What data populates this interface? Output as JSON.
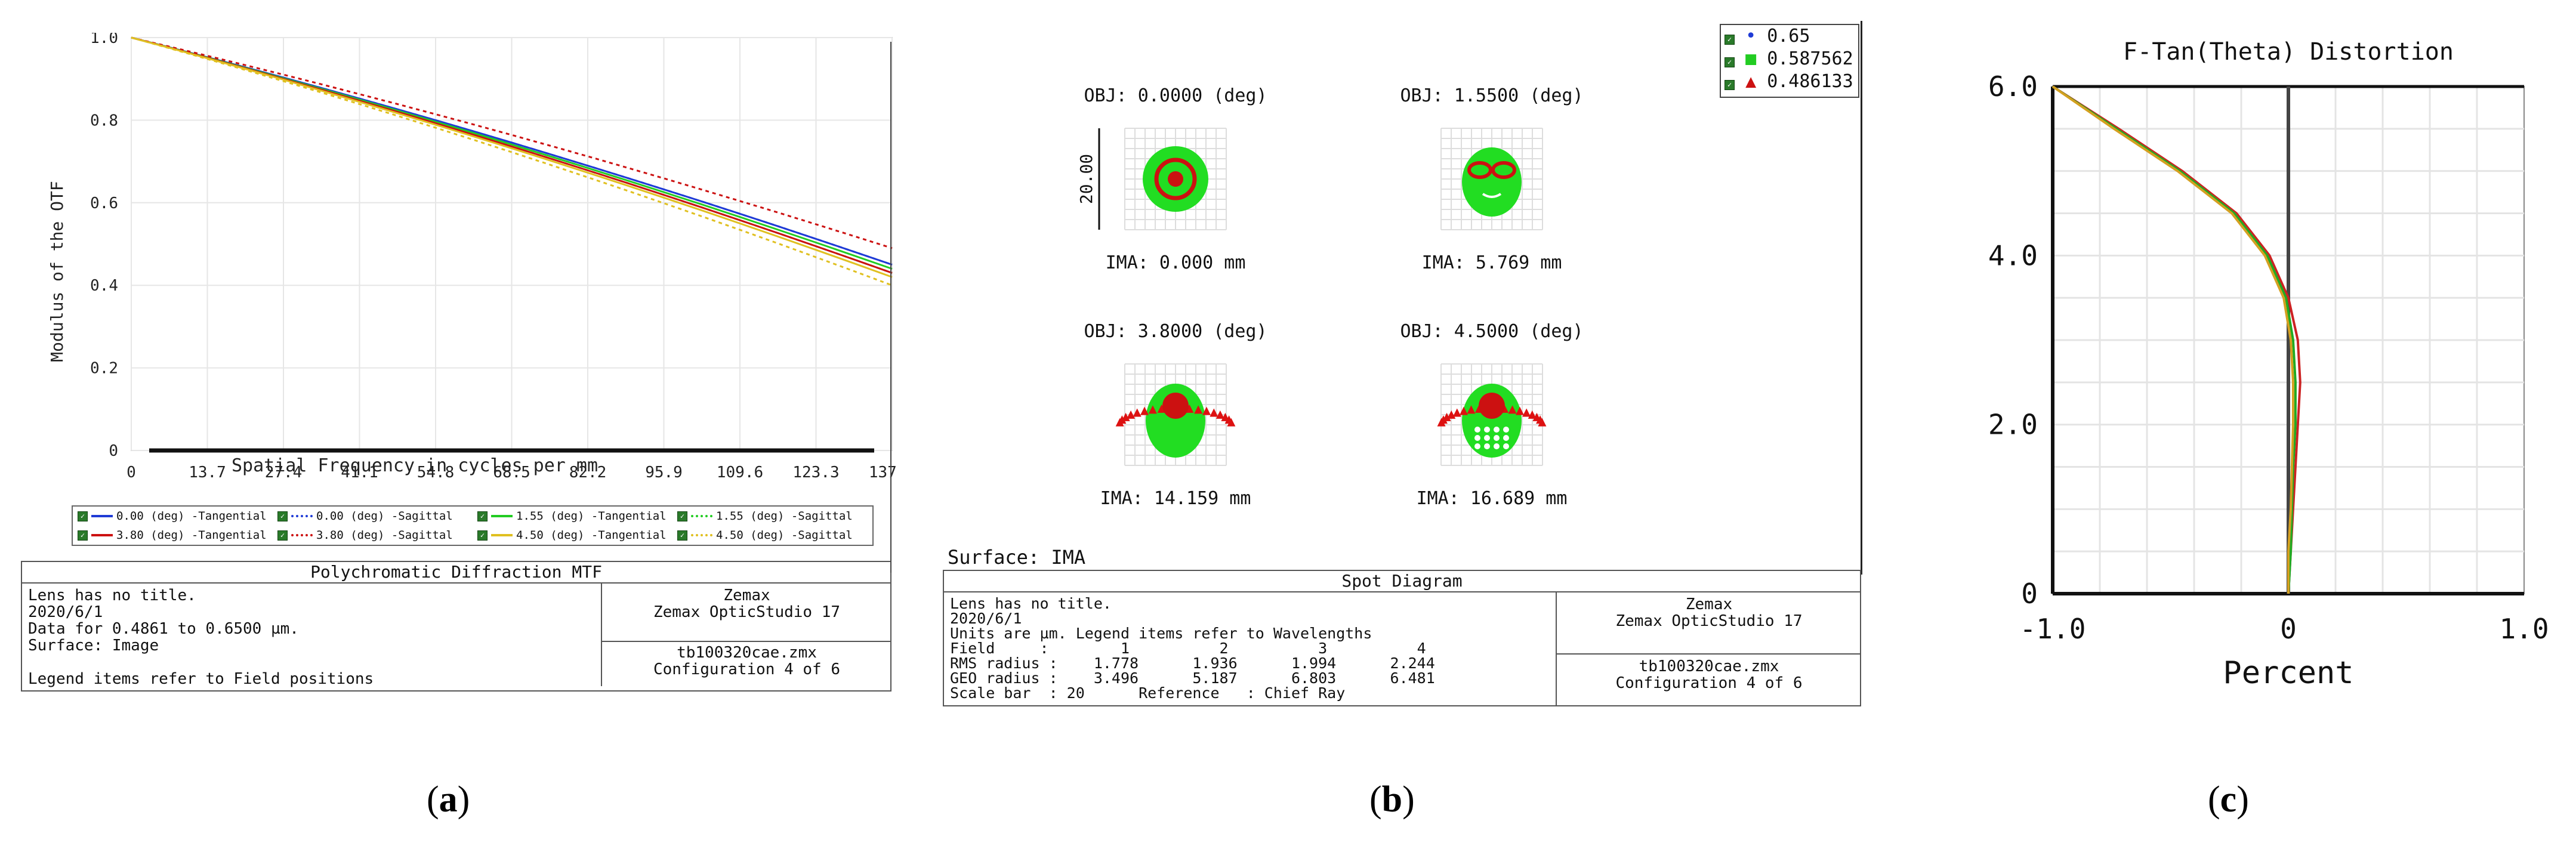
{
  "captions": {
    "a": "a",
    "b": "b",
    "c": "c"
  },
  "mtf": {
    "chart_data": {
      "type": "line",
      "title": "Polychromatic Diffraction MTF",
      "xlabel": "Spatial Frequency in cycles per mm",
      "ylabel": "Modulus of the OTF",
      "xlim": [
        0,
        137.0
      ],
      "ylim": [
        0,
        1.0
      ],
      "xticks": [
        "0",
        "13.7",
        "27.4",
        "41.1",
        "54.8",
        "68.5",
        "82.2",
        "95.9",
        "109.6",
        "123.3",
        "137.0"
      ],
      "yticks": [
        "0",
        "0.2",
        "0.4",
        "0.6",
        "0.8",
        "1.0"
      ],
      "grid": true,
      "legend_position": "bottom",
      "series": [
        {
          "name": "0.00 (deg) -Tangential",
          "color": "#1f3bd6",
          "dash": false,
          "end": 0.45
        },
        {
          "name": "0.00 (deg) -Sagittal",
          "color": "#1f3bd6",
          "dash": true,
          "end": 0.45
        },
        {
          "name": "1.55 (deg) -Tangential",
          "color": "#22cc22",
          "dash": false,
          "end": 0.44
        },
        {
          "name": "1.55 (deg) -Sagittal",
          "color": "#22cc22",
          "dash": true,
          "end": 0.43
        },
        {
          "name": "3.80 (deg) -Tangential",
          "color": "#cc1111",
          "dash": false,
          "end": 0.43
        },
        {
          "name": "3.80 (deg) -Sagittal",
          "color": "#cc1111",
          "dash": true,
          "end": 0.49
        },
        {
          "name": "4.50 (deg) -Tangential",
          "color": "#e0c020",
          "dash": false,
          "end": 0.42
        },
        {
          "name": "4.50 (deg) -Sagittal",
          "color": "#e0c020",
          "dash": true,
          "end": 0.4
        }
      ]
    },
    "info": {
      "header": "Polychromatic Diffraction MTF",
      "left": "Lens has no title.\n2020/6/1\nData for 0.4861 to 0.6500 µm.\nSurface: Image\n\nLegend items refer to Field positions",
      "right_top": "Zemax\nZemax OpticStudio 17",
      "right_bottom": "tb100320cae.zmx\nConfiguration 4 of 6"
    }
  },
  "spot": {
    "legend": [
      {
        "label": "0.65",
        "color": "#1f3bd6"
      },
      {
        "label": "0.587562",
        "color": "#22cc22"
      },
      {
        "label": "0.486133",
        "color": "#cc1111"
      }
    ],
    "fields": [
      {
        "obj": "OBJ: 0.0000 (deg)",
        "ima": "IMA: 0.000 mm"
      },
      {
        "obj": "OBJ: 1.5500 (deg)",
        "ima": "IMA: 5.769 mm"
      },
      {
        "obj": "OBJ: 3.8000 (deg)",
        "ima": "IMA: 14.159 mm"
      },
      {
        "obj": "OBJ: 4.5000 (deg)",
        "ima": "IMA: 16.689 mm"
      }
    ],
    "scale_label": "20.00",
    "surface": "Surface: IMA",
    "info": {
      "header": "Spot Diagram",
      "left": "Lens has no title.\n2020/6/1\nUnits are µm. Legend items refer to Wavelengths\nField     :        1          2          3          4\nRMS radius :    1.778      1.936      1.994      2.244\nGEO radius :    3.496      5.187      6.803      6.481\nScale bar  : 20      Reference   : Chief Ray",
      "right_top": "Zemax\nZemax OpticStudio 17",
      "right_bottom": "tb100320cae.zmx\nConfiguration 4 of 6"
    }
  },
  "distortion": {
    "chart_data": {
      "type": "line",
      "title": "F-Tan(Theta) Distortion",
      "xlabel": "Percent",
      "ylabel": "",
      "xlim": [
        -1.0,
        1.0
      ],
      "ylim": [
        0,
        6.0
      ],
      "xticks": [
        "-1.0",
        "0",
        "1.0"
      ],
      "yticks": [
        "0",
        "2.0",
        "4.0",
        "6.0"
      ],
      "grid": true,
      "series": [
        {
          "name": "red",
          "color": "#cc2222",
          "y": [
            0,
            0.5,
            1.0,
            1.5,
            2.0,
            2.5,
            3.0,
            3.5,
            4.0,
            4.5,
            5.0,
            5.5,
            6.0
          ],
          "x": [
            0.0,
            0.01,
            0.02,
            0.03,
            0.04,
            0.05,
            0.04,
            0.0,
            -0.08,
            -0.22,
            -0.45,
            -0.72,
            -1.0
          ]
        },
        {
          "name": "green",
          "color": "#22aa22",
          "y": [
            0,
            0.5,
            1.0,
            1.5,
            2.0,
            2.5,
            3.0,
            3.5,
            4.0,
            4.5,
            5.0,
            5.5,
            6.0
          ],
          "x": [
            0.0,
            0.01,
            0.015,
            0.02,
            0.03,
            0.03,
            0.02,
            -0.01,
            -0.09,
            -0.23,
            -0.46,
            -0.73,
            -1.0
          ]
        },
        {
          "name": "gold",
          "color": "#d4a020",
          "y": [
            0,
            0.5,
            1.0,
            1.5,
            2.0,
            2.5,
            3.0,
            3.5,
            4.0,
            4.5,
            5.0,
            5.5,
            6.0
          ],
          "x": [
            0.0,
            0.0,
            0.01,
            0.015,
            0.02,
            0.02,
            0.01,
            -0.02,
            -0.1,
            -0.24,
            -0.47,
            -0.74,
            -1.0
          ]
        }
      ]
    }
  }
}
